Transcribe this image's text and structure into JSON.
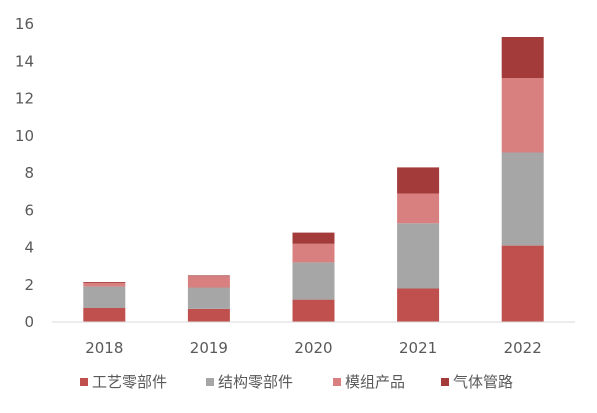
{
  "chart_data": {
    "type": "bar",
    "stacked": true,
    "categories": [
      "2018",
      "2019",
      "2020",
      "2021",
      "2022"
    ],
    "series": [
      {
        "name": "工艺零部件",
        "color": "#c0504d",
        "values": [
          0.75,
          0.7,
          1.2,
          1.8,
          4.1
        ]
      },
      {
        "name": "结构零部件",
        "color": "#a6a6a6",
        "values": [
          1.15,
          1.15,
          2.0,
          3.5,
          5.0
        ]
      },
      {
        "name": "模组产品",
        "color": "#d88080",
        "values": [
          0.2,
          0.6,
          1.0,
          1.6,
          4.0
        ]
      },
      {
        "name": "气体管路",
        "color": "#a33b3b",
        "values": [
          0.05,
          0.05,
          0.6,
          1.4,
          2.2
        ]
      }
    ],
    "ylim": [
      0,
      16
    ],
    "yticks": [
      0,
      2,
      4,
      6,
      8,
      10,
      12,
      14,
      16
    ],
    "legend_position": "bottom",
    "grid": false
  }
}
